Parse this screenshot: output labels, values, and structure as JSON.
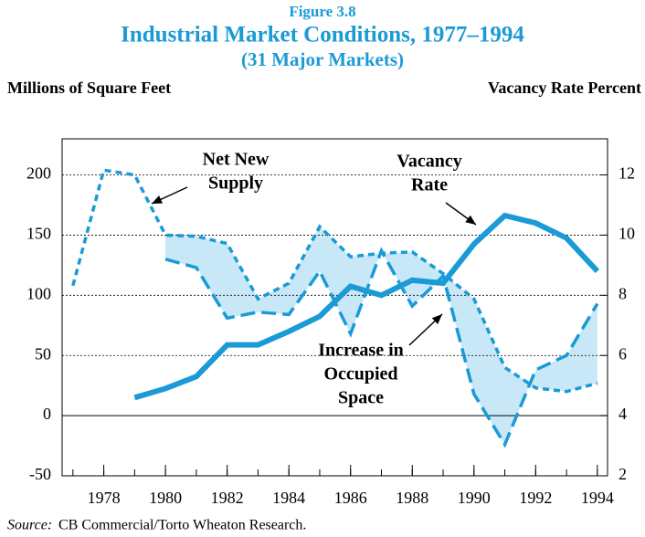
{
  "chart_data": {
    "type": "line",
    "figure_label": "Figure 3.8",
    "title": "Industrial Market Conditions, 1977–1994",
    "subtitle": "(31 Major Markets)",
    "y_label": "Millions of Square Feet",
    "y2_label": "Vacancy Rate Percent",
    "x": [
      1977,
      1978,
      1979,
      1980,
      1981,
      1982,
      1983,
      1984,
      1985,
      1986,
      1987,
      1988,
      1989,
      1990,
      1991,
      1992,
      1993,
      1994
    ],
    "series": [
      {
        "name": "Net New Supply",
        "color": "#1a9ad6",
        "dash": "short",
        "values": [
          108,
          204,
          200,
          150,
          149,
          143,
          97,
          110,
          157,
          132,
          135,
          136,
          118,
          97,
          40,
          23,
          20,
          27
        ]
      },
      {
        "name": "Increase in Occupied Space",
        "color": "#1a9ad6",
        "dash": "long",
        "values": [
          null,
          null,
          null,
          130,
          123,
          81,
          86,
          84,
          120,
          68,
          137,
          91,
          116,
          18,
          -24,
          38,
          50,
          93
        ]
      },
      {
        "name": "Vacancy Rate",
        "color": "#1a9ad6",
        "dash": "solid",
        "axis": "y2",
        "values": [
          null,
          null,
          4.6,
          4.9,
          5.3,
          6.35,
          6.35,
          6.8,
          7.3,
          8.3,
          8.0,
          8.5,
          8.4,
          9.7,
          10.65,
          10.4,
          9.9,
          8.8
        ]
      }
    ],
    "fill_between": {
      "color": "#c8e8f8"
    },
    "annotations": [
      {
        "lines": [
          "Net New",
          "Supply"
        ]
      },
      {
        "lines": [
          "Vacancy",
          "Rate"
        ]
      },
      {
        "lines": [
          "Increase in",
          "Occupied",
          "Space"
        ]
      }
    ],
    "xlim": [
      1976.65,
      1994.33
    ],
    "xticks": [
      1978,
      1980,
      1982,
      1984,
      1986,
      1988,
      1990,
      1992,
      1994
    ],
    "xminor_ticks": [
      1977,
      1978,
      1979,
      1980,
      1981,
      1982,
      1983,
      1984,
      1985,
      1986,
      1987,
      1988,
      1989,
      1990,
      1991,
      1992,
      1993,
      1994
    ],
    "ylim": [
      -50,
      230
    ],
    "yticks": [
      -50,
      0,
      50,
      100,
      150,
      200
    ],
    "y2lim": [
      2,
      13.2
    ],
    "y2ticks": [
      2,
      4,
      6,
      8,
      10,
      12
    ],
    "grid": true,
    "source": {
      "label": "Source:",
      "text": "CB Commercial/Torto Wheaton Research."
    }
  }
}
